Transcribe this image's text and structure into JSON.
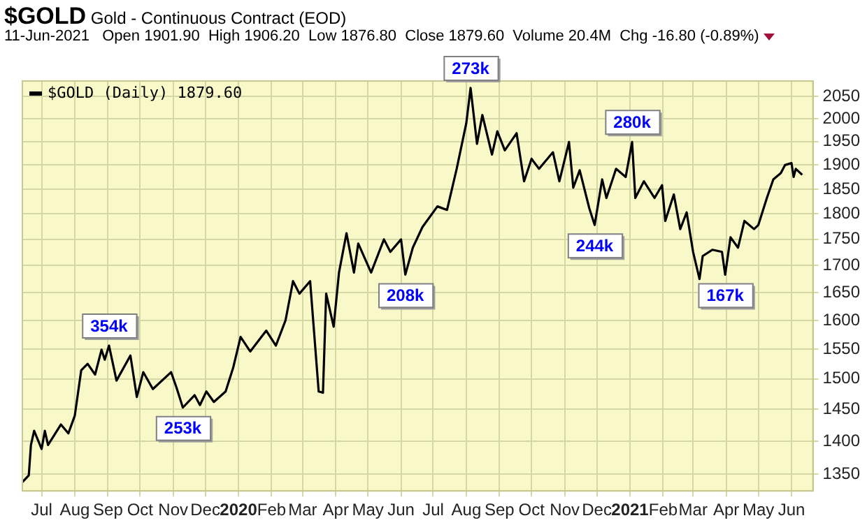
{
  "chart_data": {
    "type": "line",
    "title": "$GOLD Gold - Continuous Contract (EOD)",
    "subtitle": "11-Jun-2021   Open 1901.90  High 1906.20  Low 1876.80  Close 1879.60  Volume 20.4M  Chg -16.80 (-0.89%)",
    "x": [
      "2019-06-13",
      "2019-06-19",
      "2019-06-21",
      "2019-06-24",
      "2019-07-01",
      "2019-07-04",
      "2019-07-07",
      "2019-07-19",
      "2019-07-26",
      "2019-08-01",
      "2019-08-07",
      "2019-08-13",
      "2019-08-20",
      "2019-08-26",
      "2019-08-29",
      "2019-09-02",
      "2019-09-09",
      "2019-09-22",
      "2019-09-28",
      "2019-10-04",
      "2019-10-13",
      "2019-10-30",
      "2019-11-04",
      "2019-11-10",
      "2019-11-21",
      "2019-11-26",
      "2019-12-02",
      "2019-12-09",
      "2019-12-20",
      "2019-12-27",
      "2020-01-03",
      "2020-01-12",
      "2020-01-27",
      "2020-02-05",
      "2020-02-14",
      "2020-02-21",
      "2020-02-27",
      "2020-03-08",
      "2020-03-16",
      "2020-03-20",
      "2020-03-23",
      "2020-03-30",
      "2020-04-04",
      "2020-04-11",
      "2020-04-18",
      "2020-04-22",
      "2020-05-04",
      "2020-05-16",
      "2020-05-22",
      "2020-06-01",
      "2020-06-05",
      "2020-06-12",
      "2020-06-21",
      "2020-07-05",
      "2020-07-14",
      "2020-07-23",
      "2020-08-01",
      "2020-08-05",
      "2020-08-11",
      "2020-08-16",
      "2020-08-25",
      "2020-08-30",
      "2020-09-06",
      "2020-09-17",
      "2020-09-24",
      "2020-10-01",
      "2020-10-08",
      "2020-10-21",
      "2020-10-27",
      "2020-11-05",
      "2020-11-09",
      "2020-11-15",
      "2020-11-24",
      "2020-11-29",
      "2020-12-06",
      "2020-12-10",
      "2020-12-19",
      "2020-12-28",
      "2021-01-03",
      "2021-01-06",
      "2021-01-14",
      "2021-01-24",
      "2021-01-31",
      "2021-02-03",
      "2021-02-11",
      "2021-02-17",
      "2021-02-23",
      "2021-03-01",
      "2021-03-07",
      "2021-03-10",
      "2021-03-19",
      "2021-03-28",
      "2021-03-31",
      "2021-04-05",
      "2021-04-12",
      "2021-04-18",
      "2021-04-27",
      "2021-05-01",
      "2021-05-09",
      "2021-05-15",
      "2021-05-22",
      "2021-05-26",
      "2021-06-01",
      "2021-06-03",
      "2021-06-05",
      "2021-06-11"
    ],
    "series": [
      {
        "name": "$GOLD (Daily) 1879.60",
        "color": "#000000",
        "values": [
          1338,
          1348,
          1394,
          1416,
          1388,
          1416,
          1394,
          1426,
          1412,
          1440,
          1514,
          1525,
          1507,
          1549,
          1532,
          1556,
          1497,
          1539,
          1470,
          1511,
          1483,
          1511,
          1486,
          1453,
          1473,
          1457,
          1479,
          1462,
          1479,
          1518,
          1571,
          1546,
          1582,
          1556,
          1600,
          1671,
          1648,
          1671,
          1479,
          1477,
          1648,
          1589,
          1687,
          1762,
          1687,
          1742,
          1687,
          1750,
          1726,
          1750,
          1683,
          1734,
          1774,
          1815,
          1808,
          1892,
          1990,
          2069,
          1945,
          2008,
          1922,
          1972,
          1931,
          1968,
          1866,
          1913,
          1892,
          1927,
          1866,
          1949,
          1853,
          1889,
          1811,
          1778,
          1870,
          1832,
          1892,
          1875,
          1949,
          1832,
          1866,
          1832,
          1858,
          1786,
          1839,
          1770,
          1803,
          1726,
          1675,
          1718,
          1730,
          1726,
          1683,
          1754,
          1734,
          1786,
          1770,
          1778,
          1832,
          1870,
          1883,
          1900,
          1904,
          1875,
          1892,
          1879.6
        ]
      }
    ],
    "xlim": [
      "2019-06-13",
      "2021-06-21"
    ],
    "xticks": [
      {
        "value": "2019-07",
        "label": "Jul"
      },
      {
        "value": "2019-08",
        "label": "Aug"
      },
      {
        "value": "2019-09",
        "label": "Sep"
      },
      {
        "value": "2019-10",
        "label": "Oct"
      },
      {
        "value": "2019-11",
        "label": "Nov"
      },
      {
        "value": "2019-12",
        "label": "Dec"
      },
      {
        "value": "2020-01",
        "label": "2020"
      },
      {
        "value": "2020-02",
        "label": "Feb"
      },
      {
        "value": "2020-03",
        "label": "Mar"
      },
      {
        "value": "2020-04",
        "label": "Apr"
      },
      {
        "value": "2020-05",
        "label": "May"
      },
      {
        "value": "2020-06",
        "label": "Jun"
      },
      {
        "value": "2020-07",
        "label": "Jul"
      },
      {
        "value": "2020-08",
        "label": "Aug"
      },
      {
        "value": "2020-09",
        "label": "Sep"
      },
      {
        "value": "2020-10",
        "label": "Oct"
      },
      {
        "value": "2020-11",
        "label": "Nov"
      },
      {
        "value": "2020-12",
        "label": "Dec"
      },
      {
        "value": "2021-01",
        "label": "2021"
      },
      {
        "value": "2021-02",
        "label": "Feb"
      },
      {
        "value": "2021-03",
        "label": "Mar"
      },
      {
        "value": "2021-04",
        "label": "Apr"
      },
      {
        "value": "2021-05",
        "label": "May"
      },
      {
        "value": "2021-06",
        "label": "Jun"
      }
    ],
    "ylim": [
      1325,
      2085
    ],
    "yticks": [
      1350,
      1400,
      1450,
      1500,
      1550,
      1600,
      1650,
      1700,
      1750,
      1800,
      1850,
      1900,
      1950,
      2000,
      2050
    ],
    "log": true,
    "grid": true,
    "legend": "top left",
    "marker": "none",
    "line_style": "solid",
    "annotations": [
      {
        "text": "354k",
        "x": "2019-09-02",
        "y": 1556
      },
      {
        "text": "253k",
        "x": "2019-11-10",
        "y": 1453
      },
      {
        "text": "208k",
        "x": "2020-06-05",
        "y": 1683
      },
      {
        "text": "273k",
        "x": "2020-08-05",
        "y": 2069
      },
      {
        "text": "244k",
        "x": "2020-11-29",
        "y": 1778
      },
      {
        "text": "280k",
        "x": "2021-01-03",
        "y": 1949
      },
      {
        "text": "167k",
        "x": "2021-03-31",
        "y": 1683
      }
    ]
  }
}
